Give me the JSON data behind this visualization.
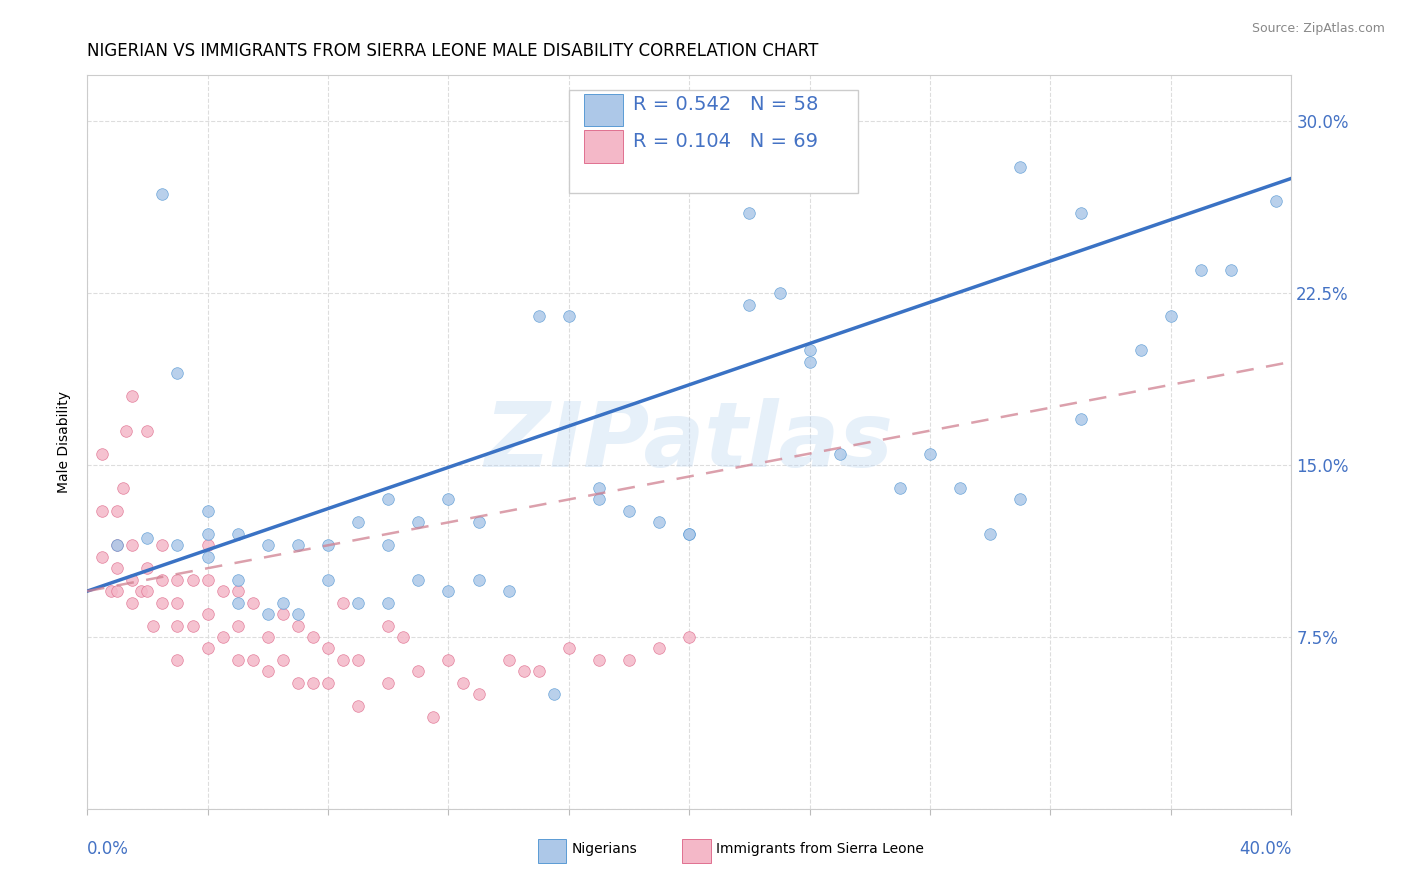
{
  "title": "NIGERIAN VS IMMIGRANTS FROM SIERRA LEONE MALE DISABILITY CORRELATION CHART",
  "source": "Source: ZipAtlas.com",
  "ylabel": "Male Disability",
  "y_ticks": [
    0.0,
    0.075,
    0.15,
    0.225,
    0.3
  ],
  "y_tick_labels_right": [
    "",
    "7.5%",
    "15.0%",
    "22.5%",
    "30.0%"
  ],
  "x_lim": [
    0.0,
    0.4
  ],
  "y_lim": [
    0.0,
    0.32
  ],
  "nigerian_R": 0.542,
  "nigerian_N": 58,
  "sierraleone_R": 0.104,
  "sierraleone_N": 69,
  "nigerian_fill_color": "#adc8e8",
  "nigerian_edge_color": "#5b9bd5",
  "sierraleone_fill_color": "#f4b8c8",
  "sierraleone_edge_color": "#e07090",
  "nigerian_line_color": "#3a72c4",
  "sierraleone_line_color": "#d08090",
  "title_fontsize": 12,
  "axis_label_fontsize": 10,
  "tick_fontsize": 12,
  "legend_fontsize": 14,
  "nigerian_x": [
    0.01,
    0.02,
    0.025,
    0.03,
    0.03,
    0.04,
    0.04,
    0.04,
    0.05,
    0.05,
    0.05,
    0.06,
    0.06,
    0.065,
    0.07,
    0.07,
    0.08,
    0.08,
    0.09,
    0.09,
    0.1,
    0.1,
    0.1,
    0.11,
    0.11,
    0.12,
    0.12,
    0.13,
    0.13,
    0.14,
    0.15,
    0.16,
    0.17,
    0.18,
    0.19,
    0.2,
    0.22,
    0.23,
    0.24,
    0.25,
    0.27,
    0.28,
    0.3,
    0.31,
    0.33,
    0.35,
    0.36,
    0.37,
    0.38,
    0.395,
    0.33,
    0.2,
    0.17,
    0.155,
    0.22,
    0.24,
    0.29,
    0.31
  ],
  "nigerian_y": [
    0.115,
    0.118,
    0.268,
    0.19,
    0.115,
    0.11,
    0.12,
    0.13,
    0.09,
    0.1,
    0.12,
    0.085,
    0.115,
    0.09,
    0.085,
    0.115,
    0.1,
    0.115,
    0.09,
    0.125,
    0.09,
    0.115,
    0.135,
    0.1,
    0.125,
    0.095,
    0.135,
    0.1,
    0.125,
    0.095,
    0.215,
    0.215,
    0.14,
    0.13,
    0.125,
    0.12,
    0.26,
    0.225,
    0.2,
    0.155,
    0.14,
    0.155,
    0.12,
    0.135,
    0.17,
    0.2,
    0.215,
    0.235,
    0.235,
    0.265,
    0.26,
    0.12,
    0.135,
    0.05,
    0.22,
    0.195,
    0.14,
    0.28
  ],
  "sierraleone_x": [
    0.005,
    0.005,
    0.005,
    0.008,
    0.01,
    0.01,
    0.01,
    0.01,
    0.012,
    0.013,
    0.015,
    0.015,
    0.015,
    0.015,
    0.018,
    0.02,
    0.02,
    0.02,
    0.022,
    0.025,
    0.025,
    0.025,
    0.03,
    0.03,
    0.03,
    0.03,
    0.035,
    0.035,
    0.04,
    0.04,
    0.04,
    0.04,
    0.045,
    0.045,
    0.05,
    0.05,
    0.05,
    0.055,
    0.055,
    0.06,
    0.06,
    0.065,
    0.065,
    0.07,
    0.07,
    0.075,
    0.075,
    0.08,
    0.08,
    0.085,
    0.085,
    0.09,
    0.09,
    0.1,
    0.1,
    0.105,
    0.11,
    0.115,
    0.12,
    0.125,
    0.13,
    0.14,
    0.145,
    0.15,
    0.16,
    0.17,
    0.18,
    0.19,
    0.2
  ],
  "sierraleone_y": [
    0.11,
    0.13,
    0.155,
    0.095,
    0.095,
    0.105,
    0.115,
    0.13,
    0.14,
    0.165,
    0.09,
    0.1,
    0.115,
    0.18,
    0.095,
    0.095,
    0.105,
    0.165,
    0.08,
    0.09,
    0.1,
    0.115,
    0.065,
    0.08,
    0.09,
    0.1,
    0.08,
    0.1,
    0.07,
    0.085,
    0.1,
    0.115,
    0.075,
    0.095,
    0.065,
    0.08,
    0.095,
    0.065,
    0.09,
    0.06,
    0.075,
    0.065,
    0.085,
    0.055,
    0.08,
    0.055,
    0.075,
    0.055,
    0.07,
    0.065,
    0.09,
    0.045,
    0.065,
    0.08,
    0.055,
    0.075,
    0.06,
    0.04,
    0.065,
    0.055,
    0.05,
    0.065,
    0.06,
    0.06,
    0.07,
    0.065,
    0.065,
    0.07,
    0.075
  ],
  "nig_line_x0": 0.0,
  "nig_line_y0": 0.095,
  "nig_line_x1": 0.4,
  "nig_line_y1": 0.275,
  "sl_line_x0": 0.0,
  "sl_line_y0": 0.095,
  "sl_line_x1": 0.4,
  "sl_line_y1": 0.195
}
